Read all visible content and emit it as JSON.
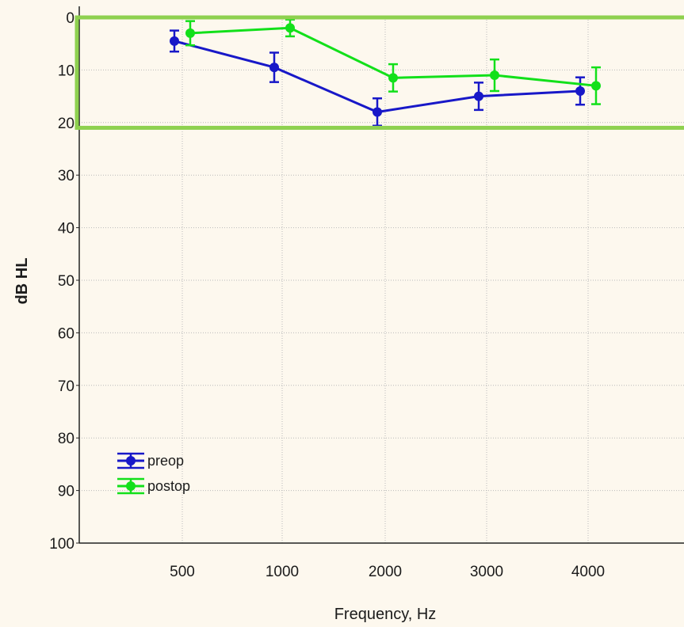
{
  "chart_data": {
    "type": "line",
    "title": "",
    "xlabel": "Frequency, Hz",
    "ylabel": "dB HL",
    "categories": [
      "500",
      "1000",
      "2000",
      "3000",
      "4000"
    ],
    "ylim": [
      0,
      100
    ],
    "y_inverted": true,
    "y_ticks": [
      0,
      10,
      20,
      30,
      40,
      50,
      60,
      70,
      80,
      90,
      100
    ],
    "grid": true,
    "legend_position": "bottom-left",
    "highlight_range": {
      "ymin": 0,
      "ymax": 21,
      "color": "#8ed14f"
    },
    "series": [
      {
        "name": "preop",
        "color": "#1818c8",
        "values": [
          4.5,
          9.5,
          18,
          15,
          14
        ],
        "errors": [
          2,
          2.8,
          2.6,
          2.6,
          2.6
        ]
      },
      {
        "name": "postop",
        "color": "#12e01a",
        "values": [
          3,
          2,
          11.5,
          11,
          13
        ],
        "errors": [
          2.3,
          1.6,
          2.6,
          3,
          3.5
        ]
      }
    ]
  }
}
